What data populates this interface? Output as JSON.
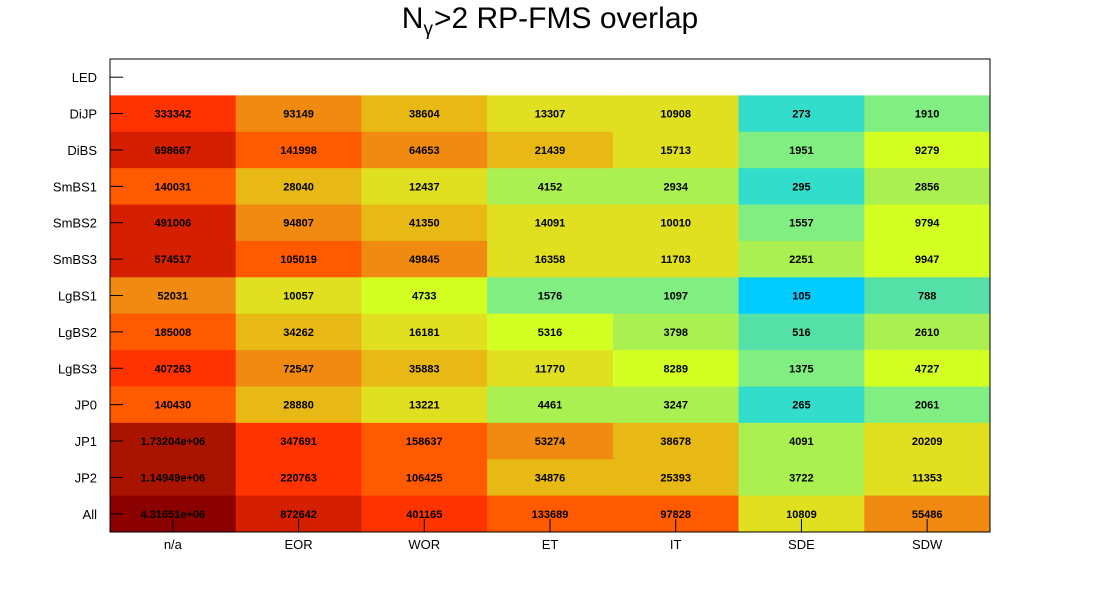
{
  "chart_data": {
    "type": "heatmap",
    "title": {
      "prefix": "N",
      "subscript": "γ",
      "suffix": ">2 RP-FMS overlap"
    },
    "x_categories": [
      "n/a",
      "EOR",
      "WOR",
      "ET",
      "IT",
      "SDE",
      "SDW"
    ],
    "y_categories": [
      "LED",
      "DiJP",
      "DiBS",
      "SmBS1",
      "SmBS2",
      "SmBS3",
      "LgBS1",
      "LgBS2",
      "LgBS3",
      "JP0",
      "JP1",
      "JP2",
      "All"
    ],
    "values": [
      [
        null,
        null,
        null,
        null,
        null,
        null,
        null
      ],
      [
        333342,
        93149,
        38604,
        13307,
        10908,
        273,
        1910
      ],
      [
        698667,
        141998,
        64653,
        21439,
        15713,
        1951,
        9279
      ],
      [
        140031,
        28040,
        12437,
        4152,
        2934,
        295,
        2856
      ],
      [
        491006,
        94807,
        41350,
        14091,
        10010,
        1557,
        9794
      ],
      [
        574517,
        105019,
        49845,
        16358,
        11703,
        2251,
        9947
      ],
      [
        52031,
        10057,
        4733,
        1576,
        1097,
        105,
        788
      ],
      [
        185008,
        34262,
        16181,
        5316,
        3798,
        516,
        2610
      ],
      [
        407263,
        72547,
        35883,
        11770,
        8289,
        1375,
        4727
      ],
      [
        140430,
        28880,
        13221,
        4461,
        3247,
        265,
        2061
      ],
      [
        1732040,
        347691,
        158637,
        53274,
        38678,
        4091,
        20209
      ],
      [
        1149490,
        220763,
        106425,
        34876,
        25393,
        3722,
        11353
      ],
      [
        4316510,
        872642,
        401165,
        133689,
        97828,
        10809,
        55486
      ]
    ],
    "value_labels": [
      [
        "",
        "",
        "",
        "",
        "",
        "",
        ""
      ],
      [
        "333342",
        "93149",
        "38604",
        "13307",
        "10908",
        "273",
        "1910"
      ],
      [
        "698667",
        "141998",
        "64653",
        "21439",
        "15713",
        "1951",
        "9279"
      ],
      [
        "140031",
        "28040",
        "12437",
        "4152",
        "2934",
        "295",
        "2856"
      ],
      [
        "491006",
        "94807",
        "41350",
        "14091",
        "10010",
        "1557",
        "9794"
      ],
      [
        "574517",
        "105019",
        "49845",
        "16358",
        "11703",
        "2251",
        "9947"
      ],
      [
        "52031",
        "10057",
        "4733",
        "1576",
        "1097",
        "105",
        "788"
      ],
      [
        "185008",
        "34262",
        "16181",
        "5316",
        "3798",
        "516",
        "2610"
      ],
      [
        "407263",
        "72547",
        "35883",
        "11770",
        "8289",
        "1375",
        "4727"
      ],
      [
        "140430",
        "28880",
        "13221",
        "4461",
        "3247",
        "265",
        "2061"
      ],
      [
        "1.73204e+06",
        "347691",
        "158637",
        "53274",
        "38678",
        "4091",
        "20209"
      ],
      [
        "1.14949e+06",
        "220763",
        "106425",
        "34876",
        "25393",
        "3722",
        "11353"
      ],
      [
        "4.31651e+06",
        "872642",
        "401165",
        "133689",
        "97828",
        "10809",
        "55486"
      ]
    ],
    "color_scale": "log",
    "palette": [
      "#00ccff",
      "#33ddcc",
      "#55e0a8",
      "#80ee80",
      "#aaf050",
      "#d4ff22",
      "#e0e020",
      "#e8b814",
      "#f08a10",
      "#ff5a00",
      "#ff3300",
      "#d42000",
      "#a81400",
      "#8b0000"
    ],
    "grid": false,
    "legend": "none"
  }
}
